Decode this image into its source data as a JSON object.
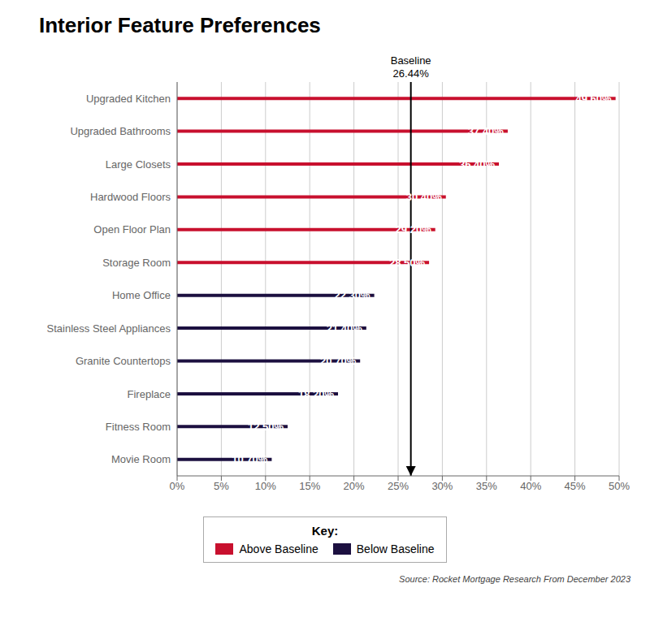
{
  "chart_data": {
    "type": "bar",
    "orientation": "horizontal",
    "title": "Interior Feature Preferences",
    "categories": [
      "Upgraded Kitchen",
      "Upgraded Bathrooms",
      "Large Closets",
      "Hardwood Floors",
      "Open Floor Plan",
      "Storage Room",
      "Home Office",
      "Stainless Steel Appliances",
      "Granite Countertops",
      "Fireplace",
      "Fitness Room",
      "Movie Room"
    ],
    "values": [
      49.6,
      37.4,
      36.4,
      30.4,
      29.2,
      28.5,
      22.3,
      21.4,
      20.7,
      18.2,
      12.5,
      10.7
    ],
    "value_labels": [
      "49.60%",
      "37.40%",
      "36.40%",
      "30.40%",
      "29.20%",
      "28.50%",
      "22.30%",
      "21.40%",
      "20.70%",
      "18.20%",
      "12.50%",
      "10.70%"
    ],
    "data_labels": true,
    "colors": [
      "#C8102E",
      "#C8102E",
      "#C8102E",
      "#C8102E",
      "#C8102E",
      "#C8102E",
      "#1C1040",
      "#1C1040",
      "#1C1040",
      "#1C1040",
      "#1C1040",
      "#1C1040"
    ],
    "xlim": [
      0,
      50
    ],
    "xticks": [
      {
        "value": 0,
        "label": "0%"
      },
      {
        "value": 5,
        "label": "5%"
      },
      {
        "value": 10,
        "label": "10%"
      },
      {
        "value": 15,
        "label": "15%"
      },
      {
        "value": 20,
        "label": "20%"
      },
      {
        "value": 25,
        "label": "25%"
      },
      {
        "value": 30,
        "label": "30%"
      },
      {
        "value": 35,
        "label": "35%"
      },
      {
        "value": 40,
        "label": "40%"
      },
      {
        "value": 45,
        "label": "45%"
      },
      {
        "value": 50,
        "label": "50%"
      }
    ],
    "grid": true,
    "annotations": [
      {
        "x": 26.44,
        "text": "Baseline",
        "value_label": "26.44%"
      }
    ],
    "legend": "bottom",
    "legend_title": "Key:",
    "legend_entries": [
      {
        "name": "Above Baseline",
        "color": "#C8102E"
      },
      {
        "name": "Below Baseline",
        "color": "#1C1040"
      }
    ],
    "source": "Source: Rocket Mortgage Research From December 2023"
  }
}
